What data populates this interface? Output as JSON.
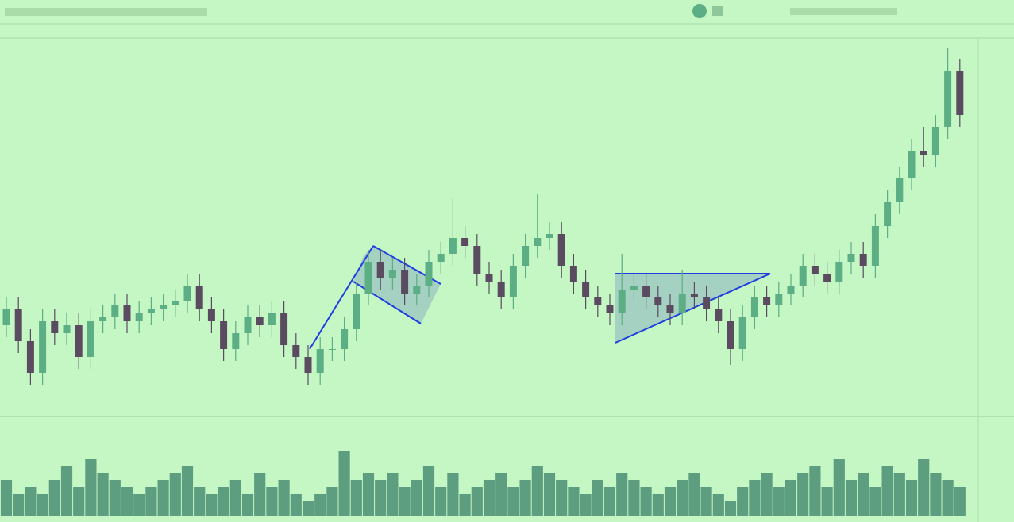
{
  "chart_data": {
    "type": "candlestick",
    "open": [
      11,
      13,
      9,
      5,
      11.5,
      10,
      11,
      7,
      11.5,
      12,
      13.5,
      11.5,
      12.5,
      13,
      13.5,
      14,
      16,
      13,
      11.5,
      8,
      10,
      12,
      11,
      12.5,
      8.5,
      7,
      5,
      8,
      8,
      10.5,
      15,
      19,
      17,
      18,
      15,
      16,
      19,
      20,
      22,
      21,
      17.5,
      16.5,
      14.5,
      18.5,
      21,
      22,
      22.5,
      18.5,
      16.5,
      14.5,
      13.5,
      12.5,
      15.5,
      16,
      14.5,
      13.5,
      12.5,
      15,
      14.5,
      13,
      11.5,
      8,
      12,
      14.5,
      13.5,
      15,
      16,
      18.5,
      17.5,
      16.5,
      19,
      20,
      18.5,
      23.5,
      26.5,
      29.5,
      33,
      32.5,
      36,
      43
    ],
    "high": [
      14.5,
      14.5,
      10.5,
      13,
      13,
      12.5,
      12.5,
      13,
      13.5,
      15,
      15,
      14,
      14.5,
      15,
      15.5,
      17.5,
      17.5,
      14.5,
      13,
      11.5,
      13.5,
      13.5,
      14,
      14,
      10,
      8.5,
      9.5,
      9.5,
      12,
      16.5,
      20.5,
      20.5,
      19.5,
      19.5,
      17.5,
      20.5,
      21.5,
      27,
      23.5,
      22.5,
      19,
      18,
      20,
      22.5,
      27.5,
      24,
      24,
      20,
      18,
      16,
      15,
      20,
      17.5,
      17.5,
      16,
      15,
      18,
      16.5,
      16,
      14.5,
      13,
      13.5,
      16,
      16,
      16.5,
      17.5,
      20,
      20,
      19,
      20.5,
      21.5,
      21.5,
      25,
      28,
      31,
      34.5,
      36,
      37.5,
      46,
      44.5
    ],
    "low": [
      9.5,
      7.5,
      3.5,
      3.5,
      8.5,
      8.5,
      5.5,
      5.5,
      10,
      10.5,
      10,
      10,
      11,
      11.5,
      12,
      12.5,
      11.5,
      10,
      6.5,
      6.5,
      8.5,
      9.5,
      9.5,
      7,
      5.5,
      3.5,
      3.5,
      6.5,
      6.5,
      9,
      13.5,
      15.5,
      15.5,
      13.5,
      13.5,
      14.5,
      17.5,
      18.5,
      19.5,
      16,
      15,
      13,
      13,
      17,
      19.5,
      20.5,
      17,
      15,
      13,
      12,
      11,
      11,
      14,
      13,
      12,
      11,
      11,
      13,
      11.5,
      10,
      6,
      6.5,
      10.5,
      12,
      12,
      13.5,
      14.5,
      16,
      15,
      15,
      17.5,
      17,
      17,
      22,
      25,
      28,
      31,
      31,
      34.5,
      36
    ],
    "close": [
      13,
      9,
      5,
      11.5,
      10,
      11,
      7,
      11.5,
      12,
      13.5,
      11.5,
      12.5,
      13,
      13.5,
      14,
      16,
      13,
      11.5,
      8,
      10,
      12,
      11,
      12.5,
      8.5,
      7,
      5,
      8,
      8,
      10.5,
      15,
      19,
      17,
      18,
      15,
      16,
      19,
      20,
      22,
      21,
      17.5,
      16.5,
      14.5,
      18.5,
      21,
      22,
      22.5,
      18.5,
      16.5,
      14.5,
      13.5,
      12.5,
      15.5,
      16,
      14.5,
      13.5,
      12.5,
      15,
      14.5,
      13,
      11.5,
      8,
      12,
      14.5,
      13.5,
      15,
      16,
      18.5,
      17.5,
      16.5,
      19,
      20,
      18.5,
      23.5,
      26.5,
      29.5,
      33,
      32.5,
      36,
      43,
      37.5
    ],
    "volume": [
      5,
      3,
      4,
      3,
      5,
      7,
      4,
      8,
      6,
      5,
      4,
      3,
      4,
      5,
      6,
      7,
      4,
      3,
      4,
      5,
      3,
      6,
      4,
      5,
      3,
      2,
      3,
      4,
      9,
      5,
      6,
      5,
      6,
      4,
      5,
      7,
      4,
      6,
      3,
      4,
      5,
      6,
      4,
      5,
      7,
      6,
      5,
      4,
      3,
      5,
      4,
      6,
      5,
      4,
      3,
      4,
      5,
      6,
      4,
      3,
      2,
      4,
      5,
      6,
      4,
      5,
      6,
      7,
      4,
      8,
      5,
      6,
      4,
      7,
      6,
      5,
      8,
      6,
      5,
      4
    ],
    "ylim": [
      0,
      46
    ],
    "volume_ylim": [
      0,
      10
    ],
    "up_color": "#5cae84",
    "down_color": "#5b4b60",
    "volume_color": "#5e9e80"
  }
}
